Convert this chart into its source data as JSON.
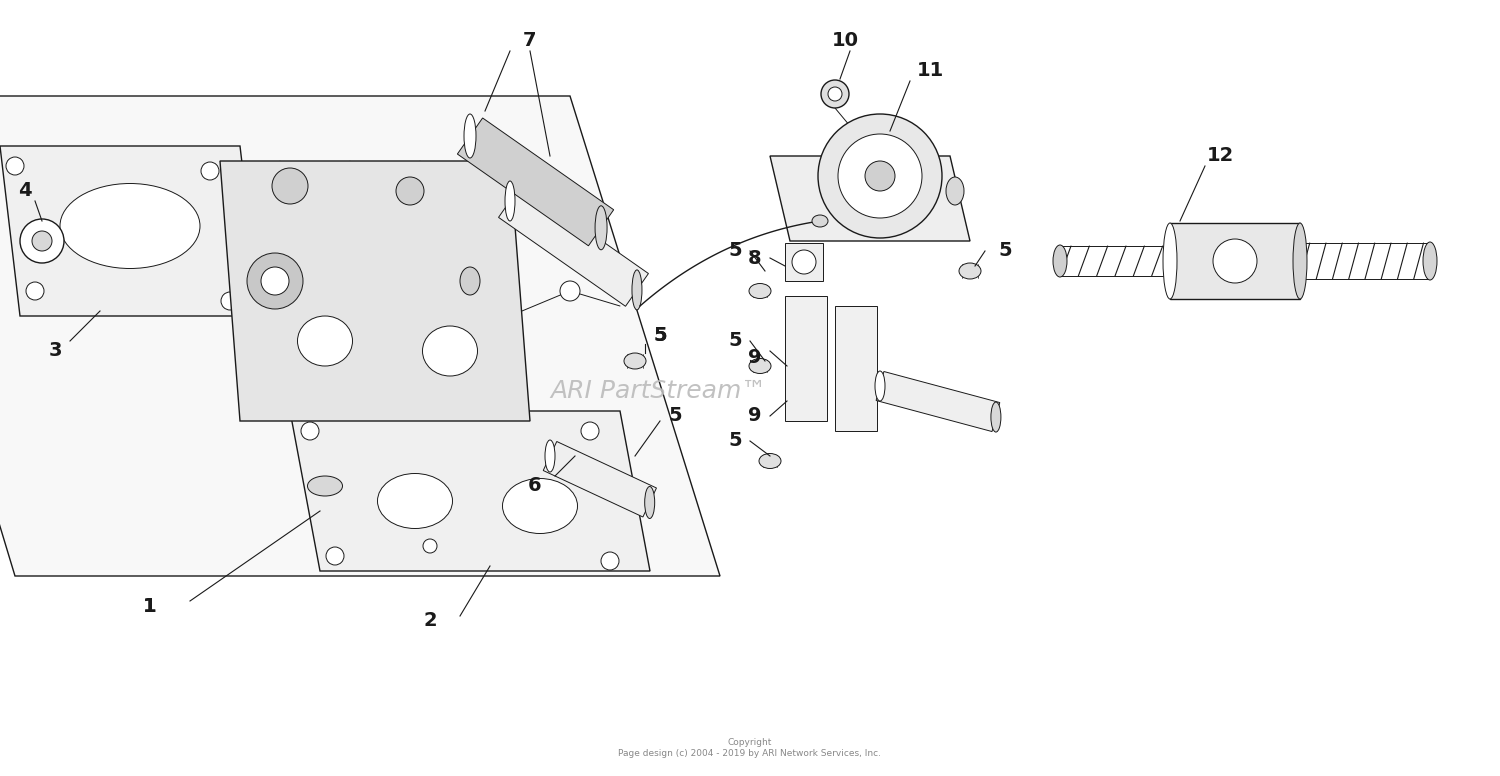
{
  "title": "ARI PartStream™",
  "copyright": "Copyright\nPage design (c) 2004 - 2019 by ARI Network Services, Inc.",
  "bg_color": "#ffffff",
  "line_color": "#1a1a1a",
  "watermark_color": "#bbbbbb",
  "watermark_fontsize": 18,
  "label_fontsize": 14,
  "figsize": [
    15.0,
    7.76
  ],
  "dpi": 100,
  "xlim": [
    0,
    15
  ],
  "ylim": [
    0,
    7.76
  ]
}
